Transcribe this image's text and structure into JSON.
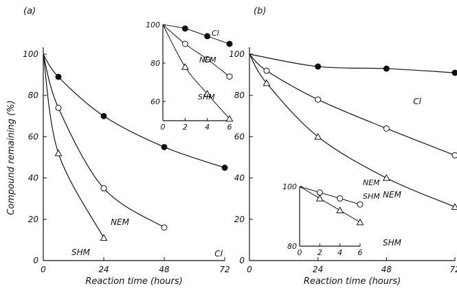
{
  "chart_data": [
    {
      "type": "line",
      "panel_label": "(a)",
      "xlabel": "Reaction time (hours)",
      "ylabel": "Compound remaining (%)",
      "xlim": [
        0,
        72
      ],
      "ylim": [
        0,
        100
      ],
      "xticks": [
        0,
        24,
        48,
        72
      ],
      "yticks": [
        0,
        20,
        40,
        60,
        80,
        100
      ],
      "grid": false,
      "series": [
        {
          "name": "Cl",
          "marker": "filled-circle",
          "x": [
            0,
            6,
            24,
            48,
            72
          ],
          "y": [
            100,
            89,
            70,
            55,
            45
          ]
        },
        {
          "name": "NEM",
          "marker": "open-circle",
          "x": [
            0,
            6,
            24,
            48
          ],
          "y": [
            100,
            74,
            35,
            16
          ]
        },
        {
          "name": "SHM",
          "marker": "open-triangle",
          "x": [
            0,
            6,
            24
          ],
          "y": [
            100,
            52,
            11
          ]
        }
      ],
      "inset": {
        "xlim": [
          0,
          6
        ],
        "ylim": [
          50,
          100
        ],
        "xticks": [
          0,
          2,
          4,
          6
        ],
        "yticks": [
          60,
          80,
          100
        ],
        "series": [
          {
            "name": "Cl",
            "marker": "filled-circle",
            "x": [
              0,
              2,
              4,
              6
            ],
            "y": [
              100,
              98,
              94,
              90
            ]
          },
          {
            "name": "NEM",
            "marker": "open-circle",
            "x": [
              0,
              2,
              4,
              6
            ],
            "y": [
              100,
              90,
              82,
              73
            ]
          },
          {
            "name": "SHM",
            "marker": "open-triangle",
            "x": [
              0,
              2,
              4,
              6
            ],
            "y": [
              100,
              78,
              64,
              51
            ]
          }
        ]
      }
    },
    {
      "type": "line",
      "panel_label": "(b)",
      "xlabel": "Reaction time (hours)",
      "ylabel": "",
      "xlim": [
        0,
        72
      ],
      "ylim": [
        0,
        100
      ],
      "xticks": [
        0,
        24,
        48,
        72
      ],
      "yticks": [
        0,
        20,
        40,
        60,
        80,
        100
      ],
      "grid": false,
      "series": [
        {
          "name": "Cl",
          "marker": "filled-circle",
          "x": [
            0,
            24,
            48,
            72
          ],
          "y": [
            100,
            94,
            93,
            91
          ]
        },
        {
          "name": "NEM",
          "marker": "open-circle",
          "x": [
            0,
            6,
            24,
            48,
            72
          ],
          "y": [
            100,
            92,
            78,
            64,
            51
          ]
        },
        {
          "name": "SHM",
          "marker": "open-triangle",
          "x": [
            0,
            6,
            24,
            48,
            72
          ],
          "y": [
            100,
            86,
            60,
            40,
            26
          ]
        }
      ],
      "inset": {
        "xlim": [
          0,
          6
        ],
        "ylim": [
          80,
          100
        ],
        "xticks": [
          0,
          2,
          4,
          6
        ],
        "yticks": [
          80,
          100
        ],
        "series": [
          {
            "name": "NEM",
            "marker": "open-circle",
            "x": [
              0,
              2,
              4,
              6
            ],
            "y": [
              100,
              98,
              96,
              94
            ]
          },
          {
            "name": "SHM",
            "marker": "open-triangle",
            "x": [
              0,
              2,
              4,
              6
            ],
            "y": [
              100,
              96,
              92,
              88
            ]
          }
        ]
      }
    }
  ]
}
